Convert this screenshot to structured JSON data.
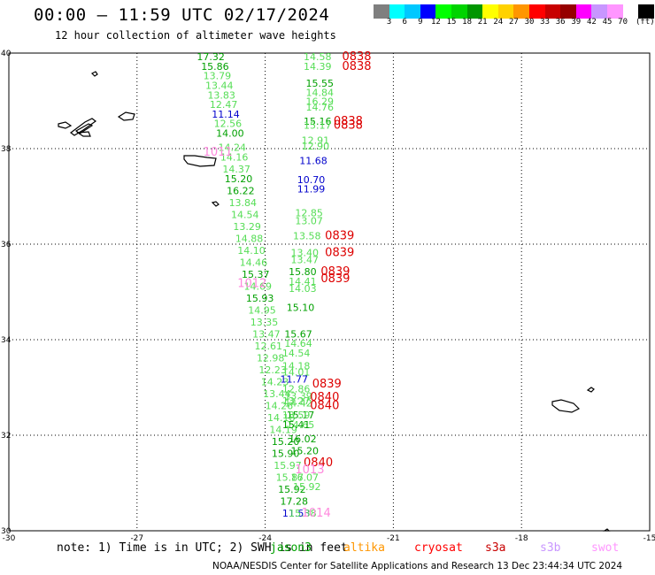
{
  "title": "00:00 – 11:59 UTC 02/17/2024",
  "subtitle": "12 hour collection of altimeter wave heights",
  "colorbar": {
    "colors": [
      "#7f7f7f",
      "#00ffff",
      "#00c8ff",
      "#0000ff",
      "#00ff00",
      "#00d400",
      "#009600",
      "#ffff00",
      "#ffd200",
      "#ff9600",
      "#ff0000",
      "#c80000",
      "#960000",
      "#ff00ff",
      "#c896ff",
      "#ff96ff",
      "#ffffff",
      "#000000"
    ],
    "labels": [
      "3",
      "6",
      "9",
      "12",
      "15",
      "18",
      "21",
      "24",
      "27",
      "30",
      "33",
      "36",
      "39",
      "42",
      "45",
      "70"
    ],
    "unit": "(ft)"
  },
  "axes": {
    "x_ticks": [
      "-30",
      "-27",
      "-24",
      "-21",
      "-18",
      "-15"
    ],
    "y_ticks": [
      "40",
      "38",
      "36",
      "34",
      "32",
      "30"
    ],
    "lon_range": [
      -30,
      -15
    ],
    "lat_range": [
      30,
      40
    ]
  },
  "note": "note: 1) Time is in UTC; 2) SWH is in feet",
  "legend": [
    {
      "label": "jason3",
      "color": "#00a000"
    },
    {
      "label": "altika",
      "color": "#ff9600"
    },
    {
      "label": "cryosat",
      "color": "#ff0000"
    },
    {
      "label": "s3a",
      "color": "#c80000"
    },
    {
      "label": "s3b",
      "color": "#c896ff"
    },
    {
      "label": "swot",
      "color": "#ff96ff"
    }
  ],
  "footer": "NOAA/NESDIS Center for Satellite Applications and Research   13 Dec 23:44:34 UTC 2024",
  "colors": {
    "dark_green": "#00a000",
    "light_green": "#55dd55",
    "blue": "#0000cc",
    "red": "#dd0000",
    "pink": "#ff88dd"
  },
  "observations": [
    {
      "lon": -25.6,
      "lat": 39.85,
      "t": "17.32",
      "c": "dark_green"
    },
    {
      "lon": -25.5,
      "lat": 39.65,
      "t": "15.86",
      "c": "dark_green"
    },
    {
      "lon": -25.45,
      "lat": 39.45,
      "t": "13.79",
      "c": "light_green"
    },
    {
      "lon": -25.4,
      "lat": 39.25,
      "t": "13.44",
      "c": "light_green"
    },
    {
      "lon": -25.35,
      "lat": 39.05,
      "t": "13.83",
      "c": "light_green"
    },
    {
      "lon": -25.3,
      "lat": 38.85,
      "t": "12.47",
      "c": "light_green"
    },
    {
      "lon": -25.25,
      "lat": 38.65,
      "t": "11.14",
      "c": "blue"
    },
    {
      "lon": -25.2,
      "lat": 38.45,
      "t": "12.56",
      "c": "light_green"
    },
    {
      "lon": -25.15,
      "lat": 38.25,
      "t": "14.00",
      "c": "dark_green"
    },
    {
      "lon": -25.1,
      "lat": 37.95,
      "t": "14.24",
      "c": "light_green"
    },
    {
      "lon": -25.05,
      "lat": 37.75,
      "t": "14.16",
      "c": "light_green"
    },
    {
      "lon": -25.0,
      "lat": 37.5,
      "t": "14.37",
      "c": "light_green"
    },
    {
      "lon": -24.95,
      "lat": 37.3,
      "t": "15.20",
      "c": "dark_green"
    },
    {
      "lon": -24.9,
      "lat": 37.05,
      "t": "16.22",
      "c": "dark_green"
    },
    {
      "lon": -24.85,
      "lat": 36.8,
      "t": "13.84",
      "c": "light_green"
    },
    {
      "lon": -24.8,
      "lat": 36.55,
      "t": "14.54",
      "c": "light_green"
    },
    {
      "lon": -24.75,
      "lat": 36.3,
      "t": "13.29",
      "c": "light_green"
    },
    {
      "lon": -24.7,
      "lat": 36.05,
      "t": "14.88",
      "c": "light_green"
    },
    {
      "lon": -24.65,
      "lat": 35.8,
      "t": "14.10",
      "c": "light_green"
    },
    {
      "lon": -24.6,
      "lat": 35.55,
      "t": "14.46",
      "c": "light_green"
    },
    {
      "lon": -24.55,
      "lat": 35.3,
      "t": "15.37",
      "c": "dark_green"
    },
    {
      "lon": -24.5,
      "lat": 35.05,
      "t": "14.69",
      "c": "light_green"
    },
    {
      "lon": -24.45,
      "lat": 34.8,
      "t": "15.93",
      "c": "dark_green"
    },
    {
      "lon": -24.4,
      "lat": 34.55,
      "t": "14.95",
      "c": "light_green"
    },
    {
      "lon": -24.35,
      "lat": 34.3,
      "t": "13.35",
      "c": "light_green"
    },
    {
      "lon": -24.3,
      "lat": 34.05,
      "t": "13.47",
      "c": "light_green"
    },
    {
      "lon": -24.25,
      "lat": 33.8,
      "t": "12.61",
      "c": "light_green"
    },
    {
      "lon": -24.2,
      "lat": 33.55,
      "t": "12.98",
      "c": "light_green"
    },
    {
      "lon": -24.15,
      "lat": 33.3,
      "t": "12.23",
      "c": "light_green"
    },
    {
      "lon": -24.1,
      "lat": 33.05,
      "t": "14.23",
      "c": "light_green"
    },
    {
      "lon": -24.05,
      "lat": 32.8,
      "t": "13.44",
      "c": "light_green"
    },
    {
      "lon": -24.0,
      "lat": 32.55,
      "t": "14.26",
      "c": "light_green"
    },
    {
      "lon": -23.95,
      "lat": 32.3,
      "t": "14.18",
      "c": "light_green"
    },
    {
      "lon": -23.9,
      "lat": 32.05,
      "t": "14.19",
      "c": "light_green"
    },
    {
      "lon": -23.85,
      "lat": 31.8,
      "t": "15.20",
      "c": "dark_green"
    },
    {
      "lon": -23.85,
      "lat": 31.55,
      "t": "15.90",
      "c": "dark_green"
    },
    {
      "lon": -23.8,
      "lat": 31.3,
      "t": "15.97",
      "c": "light_green"
    },
    {
      "lon": -23.75,
      "lat": 31.05,
      "t": "15.87",
      "c": "light_green"
    },
    {
      "lon": -23.7,
      "lat": 30.8,
      "t": "15.92",
      "c": "dark_green"
    },
    {
      "lon": -23.65,
      "lat": 30.55,
      "t": "17.28",
      "c": "dark_green"
    },
    {
      "lon": -23.6,
      "lat": 30.3,
      "t": "11.53",
      "c": "blue"
    },
    {
      "lon": -23.55,
      "lat": 32.75,
      "t": "13.39",
      "c": "light_green"
    },
    {
      "lon": -23.55,
      "lat": 32.6,
      "t": "14.42",
      "c": "light_green"
    },
    {
      "lon": -23.5,
      "lat": 32.35,
      "t": "15.17",
      "c": "dark_green"
    },
    {
      "lon": -23.5,
      "lat": 32.15,
      "t": "14.65",
      "c": "light_green"
    },
    {
      "lon": -23.45,
      "lat": 31.85,
      "t": "16.02",
      "c": "dark_green"
    },
    {
      "lon": -23.4,
      "lat": 31.05,
      "t": "16.07",
      "c": "light_green"
    },
    {
      "lon": -23.35,
      "lat": 30.85,
      "t": "15.92",
      "c": "light_green"
    },
    {
      "lon": -23.45,
      "lat": 30.3,
      "t": "15.38",
      "c": "light_green"
    },
    {
      "lon": -23.4,
      "lat": 31.6,
      "t": "15.20",
      "c": "dark_green"
    },
    {
      "lon": -23.1,
      "lat": 39.85,
      "t": "14.58",
      "c": "light_green"
    },
    {
      "lon": -23.1,
      "lat": 39.65,
      "t": "14.39",
      "c": "light_green"
    },
    {
      "lon": -23.05,
      "lat": 39.3,
      "t": "15.55",
      "c": "dark_green"
    },
    {
      "lon": -23.05,
      "lat": 39.1,
      "t": "14.84",
      "c": "light_green"
    },
    {
      "lon": -23.05,
      "lat": 38.92,
      "t": "16.29",
      "c": "light_green"
    },
    {
      "lon": -23.05,
      "lat": 38.8,
      "t": "14.76",
      "c": "light_green"
    },
    {
      "lon": -23.1,
      "lat": 38.5,
      "t": "15.16",
      "c": "dark_green"
    },
    {
      "lon": -23.1,
      "lat": 38.42,
      "t": "15.17",
      "c": "light_green"
    },
    {
      "lon": -23.15,
      "lat": 38.1,
      "t": "12.91",
      "c": "light_green"
    },
    {
      "lon": -23.15,
      "lat": 37.98,
      "t": "12.90",
      "c": "light_green"
    },
    {
      "lon": -23.2,
      "lat": 37.68,
      "t": "11.68",
      "c": "blue"
    },
    {
      "lon": -23.25,
      "lat": 37.28,
      "t": "10.70",
      "c": "blue"
    },
    {
      "lon": -23.25,
      "lat": 37.08,
      "t": "11.99",
      "c": "blue"
    },
    {
      "lon": -23.3,
      "lat": 36.58,
      "t": "12.85",
      "c": "light_green"
    },
    {
      "lon": -23.3,
      "lat": 36.42,
      "t": "13.07",
      "c": "light_green"
    },
    {
      "lon": -23.35,
      "lat": 36.1,
      "t": "13.58",
      "c": "light_green"
    },
    {
      "lon": -23.4,
      "lat": 35.75,
      "t": "13.40",
      "c": "light_green"
    },
    {
      "lon": -23.4,
      "lat": 35.6,
      "t": "13.47",
      "c": "light_green"
    },
    {
      "lon": -23.45,
      "lat": 35.35,
      "t": "15.80",
      "c": "dark_green"
    },
    {
      "lon": -23.45,
      "lat": 35.15,
      "t": "14.41",
      "c": "light_green"
    },
    {
      "lon": -23.45,
      "lat": 35.0,
      "t": "14.03",
      "c": "light_green"
    },
    {
      "lon": -23.5,
      "lat": 34.6,
      "t": "15.10",
      "c": "dark_green"
    },
    {
      "lon": -23.55,
      "lat": 34.05,
      "t": "15.67",
      "c": "dark_green"
    },
    {
      "lon": -23.55,
      "lat": 33.85,
      "t": "14.64",
      "c": "light_green"
    },
    {
      "lon": -23.6,
      "lat": 33.65,
      "t": "14.54",
      "c": "light_green"
    },
    {
      "lon": -23.6,
      "lat": 33.38,
      "t": "14.18",
      "c": "light_green"
    },
    {
      "lon": -23.6,
      "lat": 33.25,
      "t": "14.01",
      "c": "light_green"
    },
    {
      "lon": -23.65,
      "lat": 33.1,
      "t": "11.77",
      "c": "blue"
    },
    {
      "lon": -23.6,
      "lat": 32.9,
      "t": "12.86",
      "c": "light_green"
    },
    {
      "lon": -23.6,
      "lat": 32.65,
      "t": "13.27",
      "c": "light_green"
    },
    {
      "lon": -23.6,
      "lat": 32.35,
      "t": "13.59",
      "c": "light_green"
    },
    {
      "lon": -23.6,
      "lat": 32.15,
      "t": "15.41",
      "c": "dark_green"
    },
    {
      "lon": -22.2,
      "lat": 39.85,
      "t": "0838",
      "c": "red"
    },
    {
      "lon": -22.2,
      "lat": 39.65,
      "t": "0838",
      "c": "red"
    },
    {
      "lon": -22.4,
      "lat": 38.5,
      "t": "0838",
      "c": "red"
    },
    {
      "lon": -22.4,
      "lat": 38.42,
      "t": "0838",
      "c": "red"
    },
    {
      "lon": -22.6,
      "lat": 36.1,
      "t": "0839",
      "c": "red"
    },
    {
      "lon": -22.6,
      "lat": 35.75,
      "t": "0839",
      "c": "red"
    },
    {
      "lon": -22.7,
      "lat": 35.35,
      "t": "0839",
      "c": "red"
    },
    {
      "lon": -22.7,
      "lat": 35.2,
      "t": "0839",
      "c": "red"
    },
    {
      "lon": -22.9,
      "lat": 33.0,
      "t": "0839",
      "c": "red"
    },
    {
      "lon": -22.95,
      "lat": 32.72,
      "t": "0840",
      "c": "red"
    },
    {
      "lon": -22.95,
      "lat": 32.55,
      "t": "0840",
      "c": "red"
    },
    {
      "lon": -23.1,
      "lat": 31.35,
      "t": "0840",
      "c": "red"
    },
    {
      "lon": -25.45,
      "lat": 37.85,
      "t": "1011",
      "c": "pink"
    },
    {
      "lon": -24.65,
      "lat": 35.1,
      "t": "1012",
      "c": "pink"
    },
    {
      "lon": -23.3,
      "lat": 31.2,
      "t": "1013",
      "c": "pink"
    },
    {
      "lon": -23.15,
      "lat": 30.3,
      "t": "1014",
      "c": "pink"
    }
  ]
}
